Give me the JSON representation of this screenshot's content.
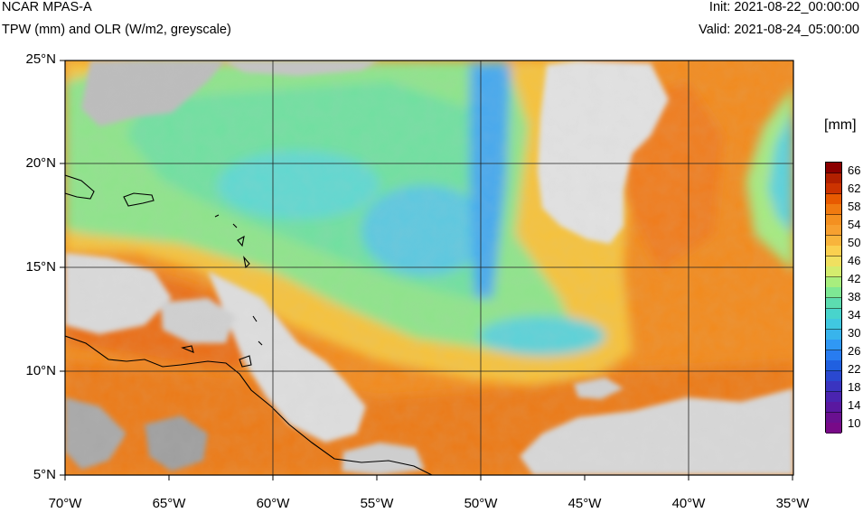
{
  "header": {
    "title_left_1": "NCAR MPAS-A",
    "title_left_2": "TPW (mm) and OLR (W/m2, greyscale)",
    "init": "Init: 2021-08-22_00:00:00",
    "valid": "Valid: 2021-08-24_05:00:00"
  },
  "map": {
    "lon_range": [
      -70,
      -35
    ],
    "lat_range": [
      5,
      25
    ],
    "x_ticks": [
      "70°W",
      "65°W",
      "60°W",
      "55°W",
      "50°W",
      "45°W",
      "40°W",
      "35°W"
    ],
    "y_ticks": [
      "25°N",
      "20°N",
      "15°N",
      "10°N",
      "5°N"
    ]
  },
  "colorbar": {
    "units": "[mm]",
    "labels": [
      "66",
      "62",
      "58",
      "54",
      "50",
      "46",
      "42",
      "38",
      "34",
      "30",
      "26",
      "22",
      "18",
      "14",
      "10"
    ],
    "colors": [
      "#8b0000",
      "#b22000",
      "#cc3300",
      "#e85a00",
      "#f07a10",
      "#f49020",
      "#f7a030",
      "#f8b43c",
      "#fad050",
      "#f0e060",
      "#d4ec6e",
      "#a8ee7e",
      "#7ee894",
      "#5cdcb0",
      "#48d4cc",
      "#40c8e0",
      "#38b4ec",
      "#3098f4",
      "#287cf0",
      "#2060e0",
      "#2a48d0",
      "#3a34c0",
      "#4a24b0",
      "#5a18a0",
      "#6a1090",
      "#780a88"
    ]
  }
}
